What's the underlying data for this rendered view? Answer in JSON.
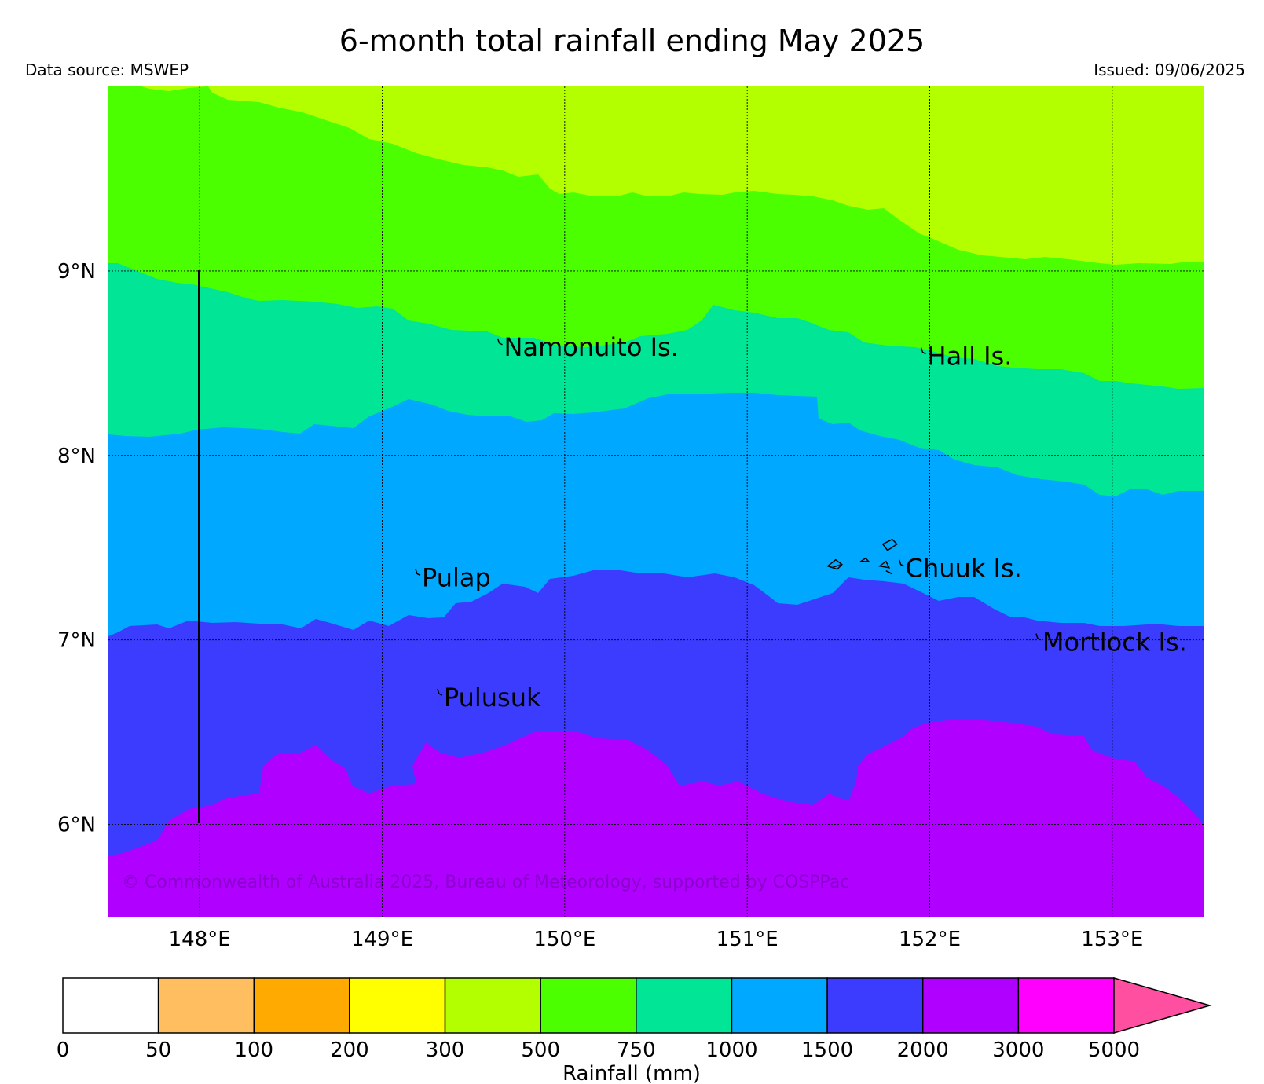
{
  "title": "6-month total rainfall ending May 2025",
  "source": "Data source: MSWEP",
  "issued": "Issued: 09/06/2025",
  "copyright": "© Commonwealth of Australia 2025, Bureau of Meteorology, supported by COSPPac",
  "lon_ticks": [
    {
      "value": 148,
      "label": "148°E"
    },
    {
      "value": 149,
      "label": "149°E"
    },
    {
      "value": 150,
      "label": "150°E"
    },
    {
      "value": 151,
      "label": "151°E"
    },
    {
      "value": 152,
      "label": "152°E"
    },
    {
      "value": 153,
      "label": "153°E"
    }
  ],
  "lat_ticks": [
    {
      "value": 9,
      "label": "9°N"
    },
    {
      "value": 8,
      "label": "8°N"
    },
    {
      "value": 7,
      "label": "7°N"
    },
    {
      "value": 6,
      "label": "6°N"
    }
  ],
  "lon_range": [
    147.5,
    153.5
  ],
  "lat_range": [
    5.5,
    10.0
  ],
  "islands": [
    {
      "name": "Namonuito Is.",
      "lon": 149.65,
      "lat": 8.6
    },
    {
      "name": "Hall Is.",
      "lon": 151.97,
      "lat": 8.55
    },
    {
      "name": "Pulap",
      "lon": 149.2,
      "lat": 7.35
    },
    {
      "name": "Chuuk Is.",
      "lon": 151.85,
      "lat": 7.4
    },
    {
      "name": "Mortlock Is.",
      "lon": 152.6,
      "lat": 7.0
    },
    {
      "name": "Pulusuk",
      "lon": 149.32,
      "lat": 6.7
    }
  ],
  "contour_bands": [
    {
      "range": "300-500",
      "color": "#b3ff00"
    },
    {
      "range": "500-750",
      "color": "#4cff00"
    },
    {
      "range": "750-1000",
      "color": "#00e696"
    },
    {
      "range": "1000-1500",
      "color": "#00a8ff"
    },
    {
      "range": "1500-2000",
      "color": "#3c3cff"
    },
    {
      "range": "2000-3000",
      "color": "#b000ff"
    }
  ],
  "colorbar": {
    "label": "Rainfall (mm)",
    "tick_labels": [
      "0",
      "50",
      "100",
      "200",
      "300",
      "500",
      "750",
      "1000",
      "1500",
      "2000",
      "3000",
      "5000"
    ],
    "colors": [
      "#ffffff",
      "#ffbf60",
      "#ffaa00",
      "#ffff00",
      "#b3ff00",
      "#4cff00",
      "#00e696",
      "#00a8ff",
      "#3c3cff",
      "#b000ff",
      "#ff00ff"
    ],
    "extend_color": "#ff4fa0"
  }
}
